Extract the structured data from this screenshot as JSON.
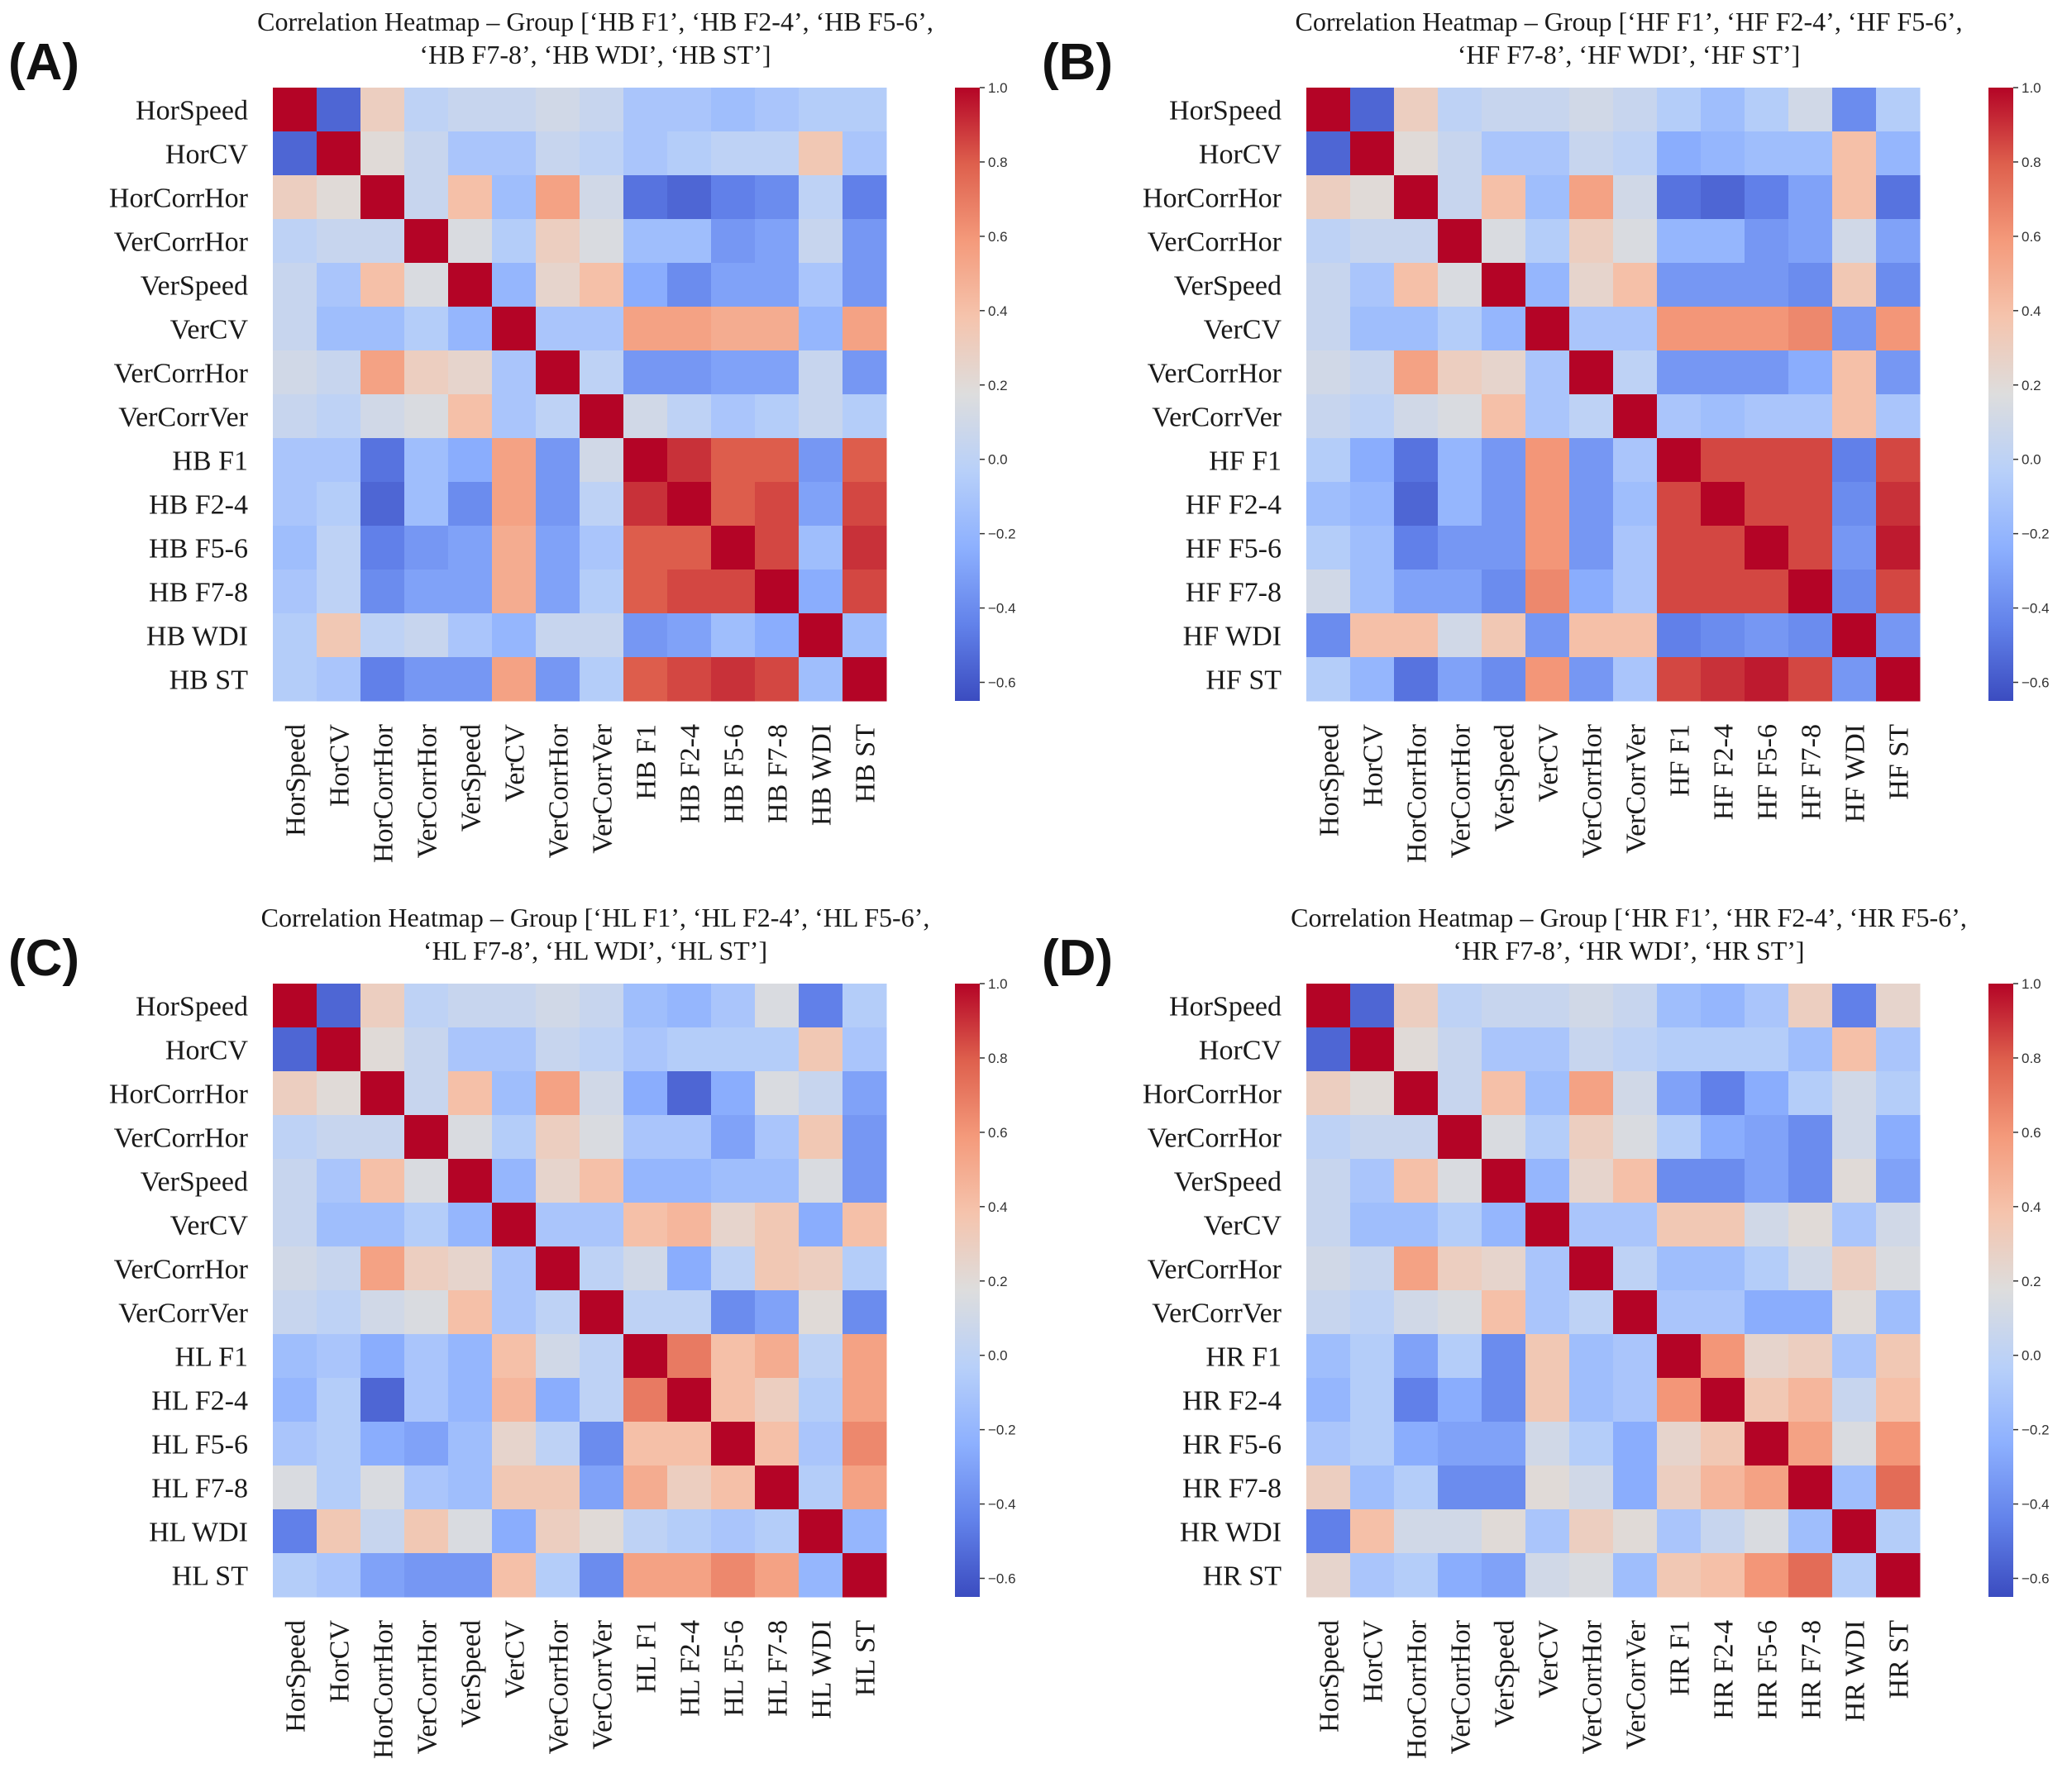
{
  "chart_data": [
    {
      "type": "heatmap",
      "panel_label": "(A)",
      "title": "Correlation Heatmap – Group [‘HB F1’, ‘HB F2-4’, ‘HB F5-6’,\n‘HB F7-8’, ‘HB WDI’, ‘HB ST’]",
      "labels": [
        "HorSpeed",
        "HorCV",
        "HorCorrHor",
        "VerCorrHor",
        "VerSpeed",
        "VerCV",
        "VerCorrHor",
        "VerCorrVer",
        "HB F1",
        "HB F2-4",
        "HB F5-6",
        "HB F7-8",
        "HB WDI",
        "HB ST"
      ],
      "colorbar_ticks": [
        "1.0",
        "0.8",
        "0.6",
        "0.4",
        "0.2",
        "0.0",
        "−0.2",
        "−0.4",
        "−0.6"
      ],
      "vmin": -0.65,
      "vmax": 1.0,
      "matrix": [
        [
          1.0,
          -0.55,
          0.3,
          0.0,
          0.05,
          0.05,
          0.1,
          0.05,
          -0.1,
          -0.1,
          -0.15,
          -0.1,
          -0.05,
          -0.05
        ],
        [
          -0.55,
          1.0,
          0.2,
          0.05,
          -0.1,
          -0.1,
          0.05,
          0.0,
          -0.1,
          -0.05,
          0.0,
          0.0,
          0.35,
          -0.1
        ],
        [
          0.3,
          0.2,
          1.0,
          0.05,
          0.4,
          -0.15,
          0.55,
          0.1,
          -0.5,
          -0.55,
          -0.45,
          -0.4,
          0.0,
          -0.45
        ],
        [
          0.0,
          0.05,
          0.05,
          1.0,
          0.15,
          -0.05,
          0.3,
          0.15,
          -0.15,
          -0.15,
          -0.35,
          -0.3,
          0.05,
          -0.35
        ],
        [
          0.05,
          -0.1,
          0.4,
          0.15,
          1.0,
          -0.2,
          0.25,
          0.4,
          -0.25,
          -0.4,
          -0.3,
          -0.3,
          -0.1,
          -0.35
        ],
        [
          0.05,
          -0.15,
          -0.15,
          -0.05,
          -0.2,
          1.0,
          -0.1,
          -0.1,
          0.55,
          0.55,
          0.5,
          0.5,
          -0.2,
          0.55
        ],
        [
          0.1,
          0.05,
          0.55,
          0.3,
          0.25,
          -0.1,
          1.0,
          0.0,
          -0.35,
          -0.35,
          -0.3,
          -0.3,
          0.05,
          -0.35
        ],
        [
          0.05,
          0.0,
          0.1,
          0.15,
          0.4,
          -0.1,
          0.0,
          1.0,
          0.1,
          0.0,
          -0.1,
          -0.05,
          0.05,
          -0.05
        ],
        [
          -0.1,
          -0.1,
          -0.5,
          -0.15,
          -0.25,
          0.55,
          -0.35,
          0.1,
          1.0,
          0.9,
          0.8,
          0.8,
          -0.35,
          0.8
        ],
        [
          -0.1,
          -0.05,
          -0.55,
          -0.15,
          -0.4,
          0.55,
          -0.35,
          0.0,
          0.9,
          1.0,
          0.8,
          0.85,
          -0.3,
          0.85
        ],
        [
          -0.15,
          0.0,
          -0.45,
          -0.35,
          -0.3,
          0.5,
          -0.3,
          -0.1,
          0.8,
          0.8,
          1.0,
          0.85,
          -0.15,
          0.9
        ],
        [
          -0.1,
          0.0,
          -0.4,
          -0.3,
          -0.3,
          0.5,
          -0.3,
          -0.05,
          0.8,
          0.85,
          0.85,
          1.0,
          -0.25,
          0.85
        ],
        [
          -0.05,
          0.35,
          0.0,
          0.05,
          -0.1,
          -0.2,
          0.05,
          0.05,
          -0.35,
          -0.3,
          -0.15,
          -0.25,
          1.0,
          -0.15
        ],
        [
          -0.05,
          -0.1,
          -0.45,
          -0.35,
          -0.35,
          0.55,
          -0.35,
          -0.05,
          0.8,
          0.85,
          0.9,
          0.85,
          -0.15,
          1.0
        ]
      ]
    },
    {
      "type": "heatmap",
      "panel_label": "(B)",
      "title": "Correlation Heatmap – Group [‘HF F1’, ‘HF F2-4’, ‘HF F5-6’,\n‘HF F7-8’, ‘HF WDI’, ‘HF ST’]",
      "labels": [
        "HorSpeed",
        "HorCV",
        "HorCorrHor",
        "VerCorrHor",
        "VerSpeed",
        "VerCV",
        "VerCorrHor",
        "VerCorrVer",
        "HF F1",
        "HF F2-4",
        "HF F5-6",
        "HF F7-8",
        "HF WDI",
        "HF ST"
      ],
      "colorbar_ticks": [
        "1.0",
        "0.8",
        "0.6",
        "0.4",
        "0.2",
        "0.0",
        "−0.2",
        "−0.4",
        "−0.6"
      ],
      "vmin": -0.65,
      "vmax": 1.0,
      "matrix": [
        [
          1.0,
          -0.55,
          0.3,
          0.0,
          0.05,
          0.05,
          0.1,
          0.05,
          -0.05,
          -0.15,
          -0.05,
          0.1,
          -0.4,
          -0.05
        ],
        [
          -0.55,
          1.0,
          0.2,
          0.05,
          -0.1,
          -0.1,
          0.05,
          0.0,
          -0.25,
          -0.2,
          -0.15,
          -0.15,
          0.4,
          -0.2
        ],
        [
          0.3,
          0.2,
          1.0,
          0.05,
          0.4,
          -0.15,
          0.55,
          0.1,
          -0.5,
          -0.55,
          -0.45,
          -0.3,
          0.4,
          -0.5
        ],
        [
          0.0,
          0.05,
          0.05,
          1.0,
          0.15,
          -0.05,
          0.3,
          0.15,
          -0.2,
          -0.2,
          -0.35,
          -0.3,
          0.1,
          -0.3
        ],
        [
          0.05,
          -0.1,
          0.4,
          0.15,
          1.0,
          -0.2,
          0.25,
          0.4,
          -0.35,
          -0.35,
          -0.35,
          -0.4,
          0.35,
          -0.4
        ],
        [
          0.05,
          -0.15,
          -0.15,
          -0.05,
          -0.2,
          1.0,
          -0.1,
          -0.1,
          0.6,
          0.6,
          0.6,
          0.65,
          -0.35,
          0.6
        ],
        [
          0.1,
          0.05,
          0.55,
          0.3,
          0.25,
          -0.1,
          1.0,
          0.0,
          -0.35,
          -0.35,
          -0.35,
          -0.25,
          0.4,
          -0.35
        ],
        [
          0.05,
          0.0,
          0.1,
          0.15,
          0.4,
          -0.1,
          0.0,
          1.0,
          -0.1,
          -0.15,
          -0.1,
          -0.1,
          0.4,
          -0.1
        ],
        [
          -0.05,
          -0.25,
          -0.5,
          -0.2,
          -0.35,
          0.6,
          -0.35,
          -0.1,
          1.0,
          0.85,
          0.85,
          0.85,
          -0.45,
          0.85
        ],
        [
          -0.15,
          -0.2,
          -0.55,
          -0.2,
          -0.35,
          0.6,
          -0.35,
          -0.15,
          0.85,
          1.0,
          0.85,
          0.85,
          -0.4,
          0.9
        ],
        [
          -0.05,
          -0.15,
          -0.45,
          -0.35,
          -0.35,
          0.6,
          -0.35,
          -0.1,
          0.85,
          0.85,
          1.0,
          0.85,
          -0.35,
          0.95
        ],
        [
          0.1,
          -0.15,
          -0.3,
          -0.3,
          -0.4,
          0.65,
          -0.25,
          -0.1,
          0.85,
          0.85,
          0.85,
          1.0,
          -0.4,
          0.85
        ],
        [
          -0.4,
          0.4,
          0.4,
          0.1,
          0.35,
          -0.35,
          0.4,
          0.4,
          -0.45,
          -0.4,
          -0.35,
          -0.4,
          1.0,
          -0.35
        ],
        [
          -0.05,
          -0.2,
          -0.5,
          -0.3,
          -0.4,
          0.6,
          -0.35,
          -0.1,
          0.85,
          0.9,
          0.95,
          0.85,
          -0.35,
          1.0
        ]
      ]
    },
    {
      "type": "heatmap",
      "panel_label": "(C)",
      "title": "Correlation Heatmap – Group [‘HL F1’, ‘HL F2-4’, ‘HL F5-6’,\n‘HL F7-8’, ‘HL WDI’, ‘HL ST’]",
      "labels": [
        "HorSpeed",
        "HorCV",
        "HorCorrHor",
        "VerCorrHor",
        "VerSpeed",
        "VerCV",
        "VerCorrHor",
        "VerCorrVer",
        "HL F1",
        "HL F2-4",
        "HL F5-6",
        "HL F7-8",
        "HL WDI",
        "HL ST"
      ],
      "colorbar_ticks": [
        "1.0",
        "0.8",
        "0.6",
        "0.4",
        "0.2",
        "0.0",
        "−0.2",
        "−0.4",
        "−0.6"
      ],
      "vmin": -0.65,
      "vmax": 1.0,
      "matrix": [
        [
          1.0,
          -0.55,
          0.3,
          0.0,
          0.05,
          0.05,
          0.1,
          0.05,
          -0.15,
          -0.2,
          -0.1,
          0.15,
          -0.45,
          -0.05
        ],
        [
          -0.55,
          1.0,
          0.2,
          0.05,
          -0.1,
          -0.1,
          0.05,
          0.0,
          -0.1,
          -0.05,
          -0.05,
          -0.05,
          0.35,
          -0.1
        ],
        [
          0.3,
          0.2,
          1.0,
          0.05,
          0.4,
          -0.15,
          0.55,
          0.1,
          -0.25,
          -0.55,
          -0.25,
          0.15,
          0.05,
          -0.3
        ],
        [
          0.0,
          0.05,
          0.05,
          1.0,
          0.15,
          -0.05,
          0.3,
          0.15,
          -0.1,
          -0.1,
          -0.3,
          -0.1,
          0.35,
          -0.35
        ],
        [
          0.05,
          -0.1,
          0.4,
          0.15,
          1.0,
          -0.2,
          0.25,
          0.4,
          -0.2,
          -0.2,
          -0.15,
          -0.15,
          0.15,
          -0.35
        ],
        [
          0.05,
          -0.15,
          -0.15,
          -0.05,
          -0.2,
          1.0,
          -0.1,
          -0.1,
          0.4,
          0.45,
          0.25,
          0.35,
          -0.25,
          0.4
        ],
        [
          0.1,
          0.05,
          0.55,
          0.3,
          0.25,
          -0.1,
          1.0,
          0.0,
          0.1,
          -0.25,
          0.0,
          0.35,
          0.3,
          -0.05
        ],
        [
          0.05,
          0.0,
          0.1,
          0.15,
          0.4,
          -0.1,
          0.0,
          1.0,
          0.0,
          0.0,
          -0.4,
          -0.3,
          0.2,
          -0.4
        ],
        [
          -0.15,
          -0.1,
          -0.25,
          -0.1,
          -0.2,
          0.4,
          0.1,
          0.0,
          1.0,
          0.7,
          0.4,
          0.5,
          0.0,
          0.55
        ],
        [
          -0.2,
          -0.05,
          -0.55,
          -0.1,
          -0.2,
          0.45,
          -0.25,
          0.0,
          0.7,
          1.0,
          0.4,
          0.3,
          -0.05,
          0.55
        ],
        [
          -0.1,
          -0.05,
          -0.25,
          -0.3,
          -0.15,
          0.25,
          0.0,
          -0.4,
          0.4,
          0.4,
          1.0,
          0.4,
          -0.1,
          0.65
        ],
        [
          0.15,
          -0.05,
          0.15,
          -0.1,
          -0.15,
          0.35,
          0.35,
          -0.3,
          0.5,
          0.3,
          0.4,
          1.0,
          -0.05,
          0.55
        ],
        [
          -0.45,
          0.35,
          0.05,
          0.35,
          0.15,
          -0.25,
          0.3,
          0.2,
          0.0,
          -0.05,
          -0.1,
          -0.05,
          1.0,
          -0.2
        ],
        [
          -0.05,
          -0.1,
          -0.3,
          -0.35,
          -0.35,
          0.4,
          -0.05,
          -0.4,
          0.55,
          0.55,
          0.65,
          0.55,
          -0.2,
          1.0
        ]
      ]
    },
    {
      "type": "heatmap",
      "panel_label": "(D)",
      "title": "Correlation Heatmap – Group [‘HR F1’, ‘HR F2-4’, ‘HR F5-6’,\n‘HR F7-8’, ‘HR WDI’, ‘HR ST’]",
      "labels": [
        "HorSpeed",
        "HorCV",
        "HorCorrHor",
        "VerCorrHor",
        "VerSpeed",
        "VerCV",
        "VerCorrHor",
        "VerCorrVer",
        "HR F1",
        "HR F2-4",
        "HR F5-6",
        "HR F7-8",
        "HR WDI",
        "HR ST"
      ],
      "colorbar_ticks": [
        "1.0",
        "0.8",
        "0.6",
        "0.4",
        "0.2",
        "0.0",
        "−0.2",
        "−0.4",
        "−0.6"
      ],
      "vmin": -0.65,
      "vmax": 1.0,
      "matrix": [
        [
          1.0,
          -0.55,
          0.3,
          0.0,
          0.05,
          0.05,
          0.1,
          0.05,
          -0.15,
          -0.2,
          -0.1,
          0.3,
          -0.45,
          0.25
        ],
        [
          -0.55,
          1.0,
          0.2,
          0.05,
          -0.1,
          -0.1,
          0.05,
          0.0,
          -0.05,
          -0.05,
          -0.05,
          -0.15,
          0.4,
          -0.1
        ],
        [
          0.3,
          0.2,
          1.0,
          0.05,
          0.4,
          -0.15,
          0.55,
          0.1,
          -0.3,
          -0.45,
          -0.25,
          -0.05,
          0.1,
          -0.05
        ],
        [
          0.0,
          0.05,
          0.05,
          1.0,
          0.15,
          -0.05,
          0.3,
          0.15,
          -0.05,
          -0.25,
          -0.3,
          -0.4,
          0.1,
          -0.25
        ],
        [
          0.05,
          -0.1,
          0.4,
          0.15,
          1.0,
          -0.2,
          0.25,
          0.4,
          -0.4,
          -0.4,
          -0.3,
          -0.4,
          0.2,
          -0.3
        ],
        [
          0.05,
          -0.15,
          -0.15,
          -0.05,
          -0.2,
          1.0,
          -0.1,
          -0.1,
          0.35,
          0.35,
          0.1,
          0.2,
          -0.1,
          0.1
        ],
        [
          0.1,
          0.05,
          0.55,
          0.3,
          0.25,
          -0.1,
          1.0,
          0.0,
          -0.15,
          -0.15,
          -0.05,
          0.1,
          0.3,
          0.15
        ],
        [
          0.05,
          0.0,
          0.1,
          0.15,
          0.4,
          -0.1,
          0.0,
          1.0,
          -0.1,
          -0.1,
          -0.25,
          -0.25,
          0.2,
          -0.15
        ],
        [
          -0.15,
          -0.05,
          -0.3,
          -0.05,
          -0.4,
          0.35,
          -0.15,
          -0.1,
          1.0,
          0.6,
          0.25,
          0.3,
          -0.1,
          0.35
        ],
        [
          -0.2,
          -0.05,
          -0.45,
          -0.25,
          -0.4,
          0.35,
          -0.15,
          -0.1,
          0.6,
          1.0,
          0.35,
          0.45,
          0.05,
          0.4
        ],
        [
          -0.1,
          -0.05,
          -0.25,
          -0.3,
          -0.3,
          0.1,
          -0.05,
          -0.25,
          0.25,
          0.35,
          1.0,
          0.55,
          0.15,
          0.6
        ],
        [
          0.3,
          -0.15,
          -0.05,
          -0.4,
          -0.4,
          0.2,
          0.1,
          -0.25,
          0.3,
          0.45,
          0.55,
          1.0,
          -0.15,
          0.75
        ],
        [
          -0.45,
          0.4,
          0.1,
          0.1,
          0.2,
          -0.1,
          0.3,
          0.2,
          -0.1,
          0.05,
          0.15,
          -0.15,
          1.0,
          -0.05
        ],
        [
          0.25,
          -0.1,
          -0.05,
          -0.25,
          -0.3,
          0.1,
          0.15,
          -0.15,
          0.35,
          0.4,
          0.6,
          0.75,
          -0.05,
          1.0
        ]
      ]
    }
  ]
}
